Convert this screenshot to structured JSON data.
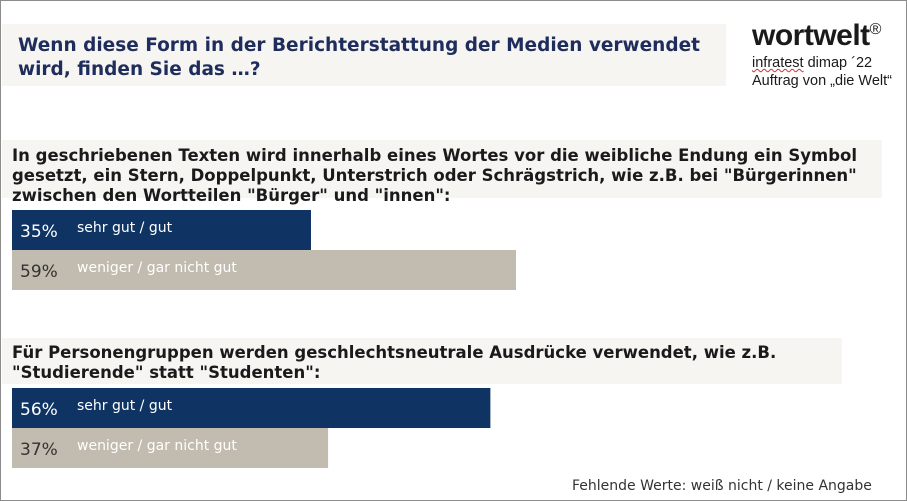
{
  "header": {
    "title": "Wenn diese Form in der Berichterstattung der Medien verwendet wird, finden Sie das …?"
  },
  "brand": {
    "logo_text": "wortwelt",
    "registered_mark": "®",
    "source_line_1_a": "infratest",
    "source_line_1_b": " dimap ´22",
    "source_line_2": "Auftrag von „die Welt“"
  },
  "colors": {
    "series_positive": "#0f3464",
    "series_negative": "#c1bbb0",
    "title": "#1f2d5c",
    "band": "#f6f5f2"
  },
  "chart_data": {
    "type": "bar",
    "orientation": "horizontal",
    "unit": "%",
    "xlim": [
      0,
      100
    ],
    "grid": false,
    "groups": [
      {
        "question": "In geschriebenen Texten wird innerhalb eines Wortes vor die weibliche Endung ein Symbol gesetzt, ein Stern, Doppelpunkt, Unterstrich oder Schrägstrich, wie z.B. bei \"Bürgerinnen\" zwischen den Wortteilen \"Bürger\" und \"innen\":",
        "bars": [
          {
            "category": "sehr gut / gut",
            "value": 35,
            "value_label": "35%"
          },
          {
            "category": "weniger / gar nicht gut",
            "value": 59,
            "value_label": "59%"
          }
        ]
      },
      {
        "question": "Für Personengruppen werden geschlechtsneutrale Ausdrücke verwendet, wie z.B. \"Studierende\" statt \"Studenten\":",
        "bars": [
          {
            "category": "sehr gut / gut",
            "value": 56,
            "value_label": "56%"
          },
          {
            "category": "weniger / gar nicht gut",
            "value": 37,
            "value_label": "37%"
          }
        ]
      }
    ]
  },
  "footnote": "Fehlende Werte: weiß nicht / keine Angabe"
}
